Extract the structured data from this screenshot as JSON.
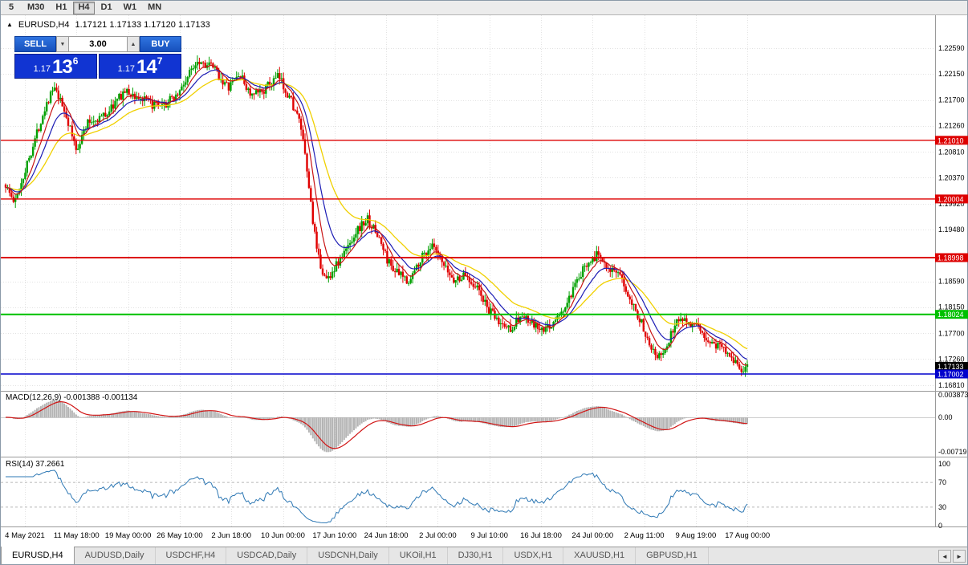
{
  "toolbar": {
    "timeframes": [
      {
        "label": "5",
        "active": false
      },
      {
        "label": "M30",
        "active": false
      },
      {
        "label": "H1",
        "active": false
      },
      {
        "label": "H4",
        "active": true
      },
      {
        "label": "D1",
        "active": false
      },
      {
        "label": "W1",
        "active": false
      },
      {
        "label": "MN",
        "active": false
      }
    ]
  },
  "chart": {
    "title_marker": "▲",
    "title_symbol": "EURUSD,H4",
    "title_ohlc": "1.17121 1.17133 1.17120 1.17133",
    "trade_panel": {
      "sell_label": "SELL",
      "buy_label": "BUY",
      "lot_value": "3.00",
      "lot_down_icon": "▼",
      "lot_up_icon": "▲",
      "sell_price": {
        "prefix": "1.17",
        "big": "13",
        "sup": "6"
      },
      "buy_price": {
        "prefix": "1.17",
        "big": "14",
        "sup": "7"
      }
    },
    "macd_label": "MACD(12,26,9) -0.001388 -0.001134",
    "rsi_label": "RSI(14) 37.2661"
  },
  "chart_data": {
    "type": "candlestick",
    "symbol": "EURUSD",
    "period": "H4",
    "seed": 1337,
    "candles": 380,
    "price_axis": {
      "top": 1.23154,
      "bottom": 1.16713,
      "ticks": [
        1.2259,
        1.2215,
        1.217,
        1.2126,
        1.2081,
        1.2037,
        1.1992,
        1.1948,
        1.1859,
        1.1815,
        1.177,
        1.1726,
        1.1681
      ]
    },
    "price_path": [
      [
        0.0,
        1.2025
      ],
      [
        0.012,
        1.1992
      ],
      [
        0.03,
        1.2065
      ],
      [
        0.055,
        1.2165
      ],
      [
        0.065,
        1.219
      ],
      [
        0.08,
        1.215
      ],
      [
        0.095,
        1.2085
      ],
      [
        0.11,
        1.213
      ],
      [
        0.135,
        1.2145
      ],
      [
        0.16,
        1.2185
      ],
      [
        0.185,
        1.217
      ],
      [
        0.21,
        1.2155
      ],
      [
        0.235,
        1.2185
      ],
      [
        0.258,
        1.224
      ],
      [
        0.28,
        1.2225
      ],
      [
        0.3,
        1.219
      ],
      [
        0.315,
        1.2215
      ],
      [
        0.332,
        1.2175
      ],
      [
        0.35,
        1.219
      ],
      [
        0.368,
        1.221
      ],
      [
        0.385,
        1.217
      ],
      [
        0.398,
        1.2125
      ],
      [
        0.408,
        1.203
      ],
      [
        0.42,
        1.1905
      ],
      [
        0.432,
        1.186
      ],
      [
        0.445,
        1.1885
      ],
      [
        0.458,
        1.191
      ],
      [
        0.472,
        1.1945
      ],
      [
        0.488,
        1.1965
      ],
      [
        0.503,
        1.1935
      ],
      [
        0.515,
        1.1895
      ],
      [
        0.53,
        1.187
      ],
      [
        0.545,
        1.186
      ],
      [
        0.56,
        1.19
      ],
      [
        0.575,
        1.192
      ],
      [
        0.59,
        1.1885
      ],
      [
        0.605,
        1.186
      ],
      [
        0.62,
        1.187
      ],
      [
        0.635,
        1.185
      ],
      [
        0.65,
        1.1812
      ],
      [
        0.665,
        1.1788
      ],
      [
        0.68,
        1.1778
      ],
      [
        0.695,
        1.18
      ],
      [
        0.71,
        1.1785
      ],
      [
        0.725,
        1.1772
      ],
      [
        0.74,
        1.179
      ],
      [
        0.755,
        1.1815
      ],
      [
        0.77,
        1.1855
      ],
      [
        0.785,
        1.1895
      ],
      [
        0.8,
        1.1905
      ],
      [
        0.815,
        1.1882
      ],
      [
        0.83,
        1.1862
      ],
      [
        0.845,
        1.1825
      ],
      [
        0.858,
        1.1785
      ],
      [
        0.87,
        1.175
      ],
      [
        0.882,
        1.1728
      ],
      [
        0.892,
        1.1748
      ],
      [
        0.903,
        1.179
      ],
      [
        0.915,
        1.1798
      ],
      [
        0.928,
        1.1783
      ],
      [
        0.94,
        1.1768
      ],
      [
        0.953,
        1.1752
      ],
      [
        0.966,
        1.1748
      ],
      [
        0.98,
        1.173
      ],
      [
        0.992,
        1.1705
      ],
      [
        1.0,
        1.1713
      ]
    ],
    "hlines": [
      {
        "price": 1.2101,
        "label": "1.21010",
        "color": "#dd0000",
        "width": 1.4
      },
      {
        "price": 1.20004,
        "label": "1.20004",
        "color": "#dd0000",
        "width": 1.4
      },
      {
        "price": 1.18998,
        "label": "1.18998",
        "color": "#dd0000",
        "width": 2
      },
      {
        "price": 1.18024,
        "label": "1.18024",
        "color": "#00c000",
        "width": 2
      },
      {
        "price": 1.17002,
        "label": "1.17002",
        "color": "#0000cc",
        "width": 1.6
      }
    ],
    "current_price": {
      "value": 1.17133,
      "label": "1.17133",
      "color": "#000000"
    },
    "time_ticks": [
      "4 May 2021",
      "11 May 18:00",
      "19 May 00:00",
      "26 May 10:00",
      "2 Jun 18:00",
      "10 Jun 00:00",
      "17 Jun 10:00",
      "24 Jun 18:00",
      "2 Jul 00:00",
      "9 Jul 10:00",
      "16 Jul 18:00",
      "24 Jul 00:00",
      "2 Aug 11:00",
      "9 Aug 19:00",
      "17 Aug 00:00"
    ],
    "macd": {
      "fast": 12,
      "slow": 26,
      "signal": 9,
      "value": -0.001388,
      "signal_value": -0.001134,
      "axis": [
        "0.003873",
        "0.00",
        "-0.00719"
      ]
    },
    "rsi": {
      "period": 14,
      "value": 37.2661,
      "axis": [
        "100",
        "70",
        "30",
        "0"
      ],
      "levels": [
        70,
        30
      ]
    },
    "colors": {
      "up": "#00a000",
      "down": "#e00000",
      "ma_slow": "#f0d000",
      "ma_mid": "#1c1cb4",
      "ma_fast": "#c81414",
      "macd_hist": "#b4b4b4",
      "macd_signal": "#d01414",
      "rsi_line": "#2e78b4",
      "grid": "#e2e2e2"
    }
  },
  "tabs": {
    "items": [
      {
        "label": "EURUSD,H4",
        "active": true
      },
      {
        "label": "AUDUSD,Daily",
        "active": false
      },
      {
        "label": "USDCHF,H4",
        "active": false
      },
      {
        "label": "USDCAD,Daily",
        "active": false
      },
      {
        "label": "USDCNH,Daily",
        "active": false
      },
      {
        "label": "UKOil,H1",
        "active": false
      },
      {
        "label": "DJ30,H1",
        "active": false
      },
      {
        "label": "USDX,H1",
        "active": false
      },
      {
        "label": "XAUUSD,H1",
        "active": false
      },
      {
        "label": "GBPUSD,H1",
        "active": false
      }
    ],
    "scroll_left": "◄",
    "scroll_right": "►"
  }
}
